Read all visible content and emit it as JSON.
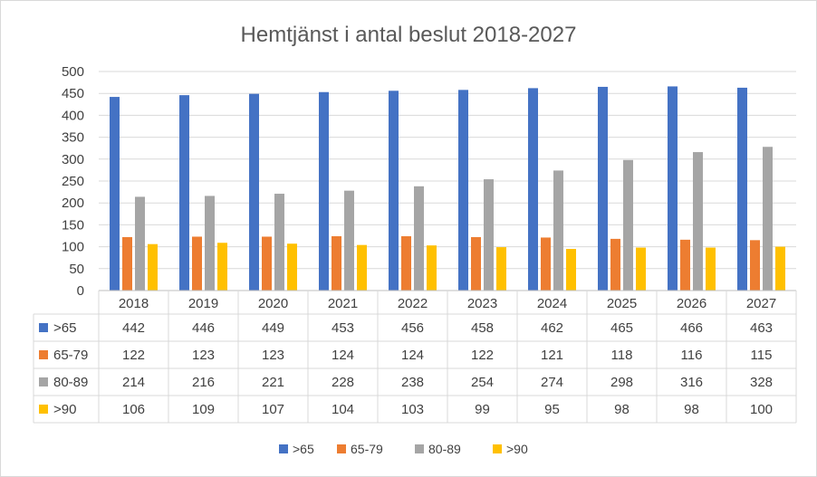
{
  "chart_data": {
    "type": "bar",
    "title": "Hemtjänst i antal beslut 2018-2027",
    "xlabel": "",
    "ylabel": "",
    "ylim": [
      0,
      500
    ],
    "yticks": [
      0,
      50,
      100,
      150,
      200,
      250,
      300,
      350,
      400,
      450,
      500
    ],
    "grid": true,
    "legend_position": "bottom",
    "data_table": true,
    "categories": [
      "2018",
      "2019",
      "2020",
      "2021",
      "2022",
      "2023",
      "2024",
      "2025",
      "2026",
      "2027"
    ],
    "series": [
      {
        "name": ">65",
        "color": "#4472c4",
        "values": [
          442,
          446,
          449,
          453,
          456,
          458,
          462,
          465,
          466,
          463
        ]
      },
      {
        "name": "65-79",
        "color": "#ed7d31",
        "values": [
          122,
          123,
          123,
          124,
          124,
          122,
          121,
          118,
          116,
          115
        ]
      },
      {
        "name": "80-89",
        "color": "#a5a5a5",
        "values": [
          214,
          216,
          221,
          228,
          238,
          254,
          274,
          298,
          316,
          328
        ]
      },
      {
        "name": ">90",
        "color": "#ffc000",
        "values": [
          106,
          109,
          107,
          104,
          103,
          99,
          95,
          98,
          98,
          100
        ]
      }
    ]
  }
}
